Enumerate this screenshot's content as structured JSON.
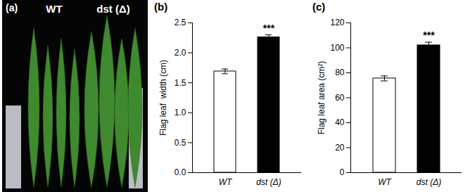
{
  "chart_data": [
    {
      "type": "photo",
      "title": "(a)",
      "categories": [
        "WT",
        "dst (Δ)"
      ]
    },
    {
      "type": "bar",
      "title": "(b)",
      "categories": [
        "WT",
        "dst (Δ)"
      ],
      "values": [
        1.69,
        2.26
      ],
      "errors": [
        0.04,
        0.04
      ],
      "colors": [
        "#ffffff",
        "#000000"
      ],
      "ylabel": "Flag leaf  width (cm)",
      "ylim": [
        0,
        2.5
      ],
      "yticks": [
        0,
        0.5,
        1,
        1.5,
        2,
        2.5
      ],
      "annotations": [
        {
          "category": "dst (Δ)",
          "text": "***"
        }
      ],
      "grid": false
    },
    {
      "type": "bar",
      "title": "(c)",
      "categories": [
        "WT",
        "dst (Δ)"
      ],
      "values": [
        75.5,
        102
      ],
      "errors": [
        2,
        2.5
      ],
      "colors": [
        "#ffffff",
        "#000000"
      ],
      "ylabel": "Flag leaf area (cm²)",
      "ylim": [
        0,
        120
      ],
      "yticks": [
        0,
        20,
        40,
        60,
        80,
        100,
        120
      ],
      "annotations": [
        {
          "category": "dst (Δ)",
          "text": "***"
        }
      ],
      "grid": false
    }
  ]
}
